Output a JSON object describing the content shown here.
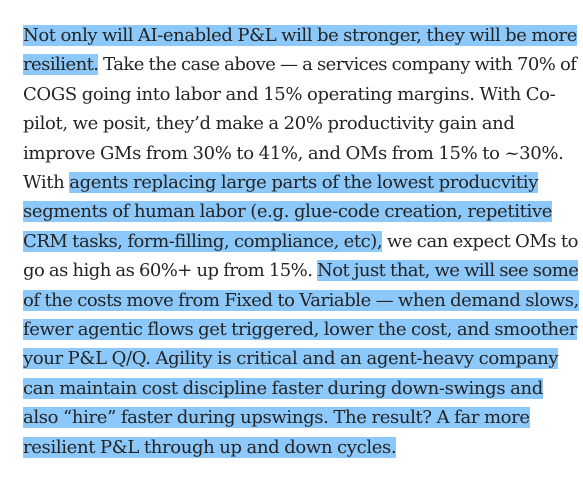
{
  "highlight_color": "#8cc8fa",
  "text_color": "#242424",
  "paragraph": {
    "lines": [
      [
        {
          "t": "Not only will AI-enabled P&L will be stronger, they will be more",
          "h": true
        }
      ],
      [
        {
          "t": "resilient.",
          "h": true
        },
        {
          "t": " Take the case above — a services company with 70% of",
          "h": false
        }
      ],
      [
        {
          "t": "COGS going into labor and 15% operating margins. With Co-",
          "h": false
        }
      ],
      [
        {
          "t": "pilot, we posit, they’d make a 20% productivity gain and",
          "h": false
        }
      ],
      [
        {
          "t": "improve GMs from 30% to 41%, and OMs from 15% to ~30%.",
          "h": false
        }
      ],
      [
        {
          "t": "With ",
          "h": false
        },
        {
          "t": "agents replacing large parts of the lowest producvitiy",
          "h": true
        }
      ],
      [
        {
          "t": "segments of human labor (e.g. glue-code creation, repetitive",
          "h": true
        }
      ],
      [
        {
          "t": "CRM tasks, form-filling, compliance, etc),",
          "h": true
        },
        {
          "t": " we can expect OMs to",
          "h": false
        }
      ],
      [
        {
          "t": "go as high as 60%+ up from 15%. ",
          "h": false
        },
        {
          "t": "Not just that, we will see some",
          "h": true
        }
      ],
      [
        {
          "t": "of the costs move from Fixed to Variable — when demand slows,",
          "h": true
        }
      ],
      [
        {
          "t": "fewer agentic flows get triggered, lower the cost, and smoother",
          "h": true
        }
      ],
      [
        {
          "t": "your P&L Q/Q. Agility is critical and an agent-heavy company",
          "h": true
        }
      ],
      [
        {
          "t": "can maintain cost discipline faster during down-swings and",
          "h": true
        }
      ],
      [
        {
          "t": "also “hire” faster during upswings. The result? A far more",
          "h": true
        }
      ],
      [
        {
          "t": "resilient P&L through up and down cycles.",
          "h": true
        }
      ]
    ]
  }
}
